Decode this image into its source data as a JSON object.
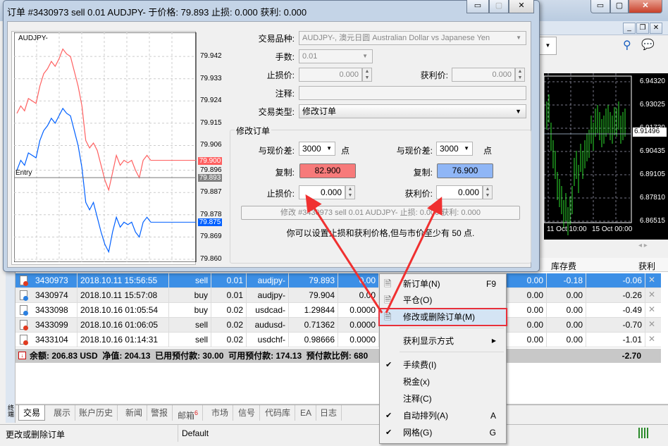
{
  "dialog": {
    "title": "订单 #3430973 sell 0.01 AUDJPY- 于价格: 79.893 止损: 0.000 获利: 0.000",
    "symbol_label": "交易品种:",
    "symbol_value": "AUDJPY-, 澳元日圆 Australian Dollar vs Japanese Yen",
    "volume_label": "手数:",
    "volume_value": "0.01",
    "sl_label": "止损价:",
    "sl_value": "0.000",
    "tp_label": "获利价:",
    "tp_value": "0.000",
    "comment_label": "注释:",
    "comment_value": "",
    "type_label": "交易类型:",
    "type_value": "修改订单",
    "group_title": "修改订单",
    "left": {
      "diff_label": "与现价差:",
      "diff_value": "3000",
      "unit": "点",
      "copy_label": "复制:",
      "copy_value": "82.900",
      "sl_label": "止损价:",
      "sl_value": "0.000"
    },
    "right": {
      "diff_label": "与现价差:",
      "diff_value": "3000",
      "unit": "点",
      "copy_label": "复制:",
      "copy_value": "76.900",
      "tp_label": "获利价:",
      "tp_value": "0.000"
    },
    "modify_button": "修改 #3430973 sell 0.01 AUDJPY- 止损: 0.000 获利: 0.000",
    "hint": "你可以设置止损和获利价格,但与市价至少有 50 点."
  },
  "mini_chart": {
    "symbol": "AUDJPY-",
    "entry_label": "Entry",
    "y_ticks": [
      "79.942",
      "79.933",
      "79.924",
      "79.915",
      "79.906",
      "79.896",
      "79.887",
      "79.878",
      "79.869",
      "79.860"
    ],
    "ask_label": "79.900",
    "entry_price": "79.893",
    "bid_label": "79.875",
    "ask_color": "#ff6060",
    "bid_color": "#0060ff",
    "chart_data": {
      "type": "line",
      "ylim": [
        79.86,
        79.95
      ],
      "series": [
        {
          "values": [
            79.919,
            79.922,
            79.92,
            79.925,
            79.924,
            79.923,
            79.93,
            79.935,
            79.937,
            79.94,
            79.938,
            79.941,
            79.945,
            79.943,
            79.942,
            79.936,
            79.93,
            79.922,
            79.908,
            79.905,
            79.907,
            79.904,
            79.898,
            79.892,
            79.888,
            79.895,
            79.902,
            79.898,
            79.9,
            79.899,
            79.9,
            79.896,
            79.893,
            79.9,
            79.902,
            79.9
          ]
        },
        {
          "values": [
            79.896,
            79.9,
            79.898,
            79.903,
            79.902,
            79.901,
            79.908,
            79.912,
            79.914,
            79.917,
            79.915,
            79.918,
            79.921,
            79.919,
            79.918,
            79.912,
            79.906,
            79.897,
            79.883,
            79.88,
            79.883,
            79.877,
            79.871,
            79.866,
            79.863,
            79.871,
            79.877,
            79.873,
            79.875,
            79.874,
            79.875,
            79.871,
            79.869,
            79.875,
            79.877,
            79.875
          ]
        }
      ]
    }
  },
  "main_window": {
    "chart_y_ticks": [
      "6.94320",
      "6.93025",
      "6.91730",
      "6.90435",
      "6.89105",
      "6.87810",
      "6.86515"
    ],
    "current_price": "6.91496",
    "x_ticks": [
      "11 Oct 10:00",
      "15 Oct 00:00"
    ],
    "col_swap": "库存费",
    "col_profit": "获利"
  },
  "orders": [
    {
      "ticket": "3430973",
      "time": "2018.10.11 15:56:55",
      "type": "sell",
      "volume": "0.01",
      "symbol": "audjpy-",
      "price": "79.893",
      "sl": "0.00",
      "c8": "0.00",
      "swap": "-0.18",
      "profit": "-0.06"
    },
    {
      "ticket": "3430974",
      "time": "2018.10.11 15:57:08",
      "type": "buy",
      "volume": "0.01",
      "symbol": "audjpy-",
      "price": "79.904",
      "sl": "0.00",
      "c8": "0.00",
      "swap": "0.00",
      "profit": "-0.26"
    },
    {
      "ticket": "3433098",
      "time": "2018.10.16 01:05:54",
      "type": "buy",
      "volume": "0.02",
      "symbol": "usdcad-",
      "price": "1.29844",
      "sl": "0.0000",
      "c8": "0.00",
      "swap": "0.00",
      "profit": "-0.49"
    },
    {
      "ticket": "3433099",
      "time": "2018.10.16 01:06:05",
      "type": "sell",
      "volume": "0.02",
      "symbol": "audusd-",
      "price": "0.71362",
      "sl": "0.0000",
      "c8": "0.00",
      "swap": "0.00",
      "profit": "-0.70"
    },
    {
      "ticket": "3433104",
      "time": "2018.10.16 01:14:31",
      "type": "sell",
      "volume": "0.02",
      "symbol": "usdchf-",
      "price": "0.98666",
      "sl": "0.0000",
      "c8": "0.00",
      "swap": "0.00",
      "profit": "-1.01"
    }
  ],
  "summary": {
    "text": "余额: 206.83 USD  净值: 204.13  已用预付款: 30.00  可用预付款: 174.13  预付款比例: 680",
    "total": "-2.70"
  },
  "tabs": [
    {
      "label": "交易"
    },
    {
      "label": "展示"
    },
    {
      "label": "账户历史"
    },
    {
      "label": "新闻"
    },
    {
      "label": "警报"
    },
    {
      "label": "邮箱",
      "badge": "6"
    },
    {
      "label": "市场"
    },
    {
      "label": "信号"
    },
    {
      "label": "代码库"
    },
    {
      "label": "EA"
    },
    {
      "label": "日志"
    }
  ],
  "side_label": "终端",
  "status": {
    "text": "更改或删除订单",
    "profile": "Default"
  },
  "context_menu": [
    {
      "label": "新订单(N)",
      "key": "F9"
    },
    {
      "label": "平仓(O)"
    },
    {
      "label": "修改或删除订单(M)",
      "highlighted": true
    },
    {
      "label": "获利显示方式",
      "submenu": true
    },
    {
      "label": "手续费(I)",
      "checked": true
    },
    {
      "label": "税金(x)"
    },
    {
      "label": "注释(C)"
    },
    {
      "label": "自动排列(A)",
      "key": "A",
      "checked": true
    },
    {
      "label": "网格(G)",
      "key": "G",
      "checked": true
    }
  ],
  "colors": {
    "selected_row": "#3c8fe6",
    "highlight_border": "#e8303a",
    "arrow": "#f03030",
    "chart_green": "#2ee02e"
  }
}
